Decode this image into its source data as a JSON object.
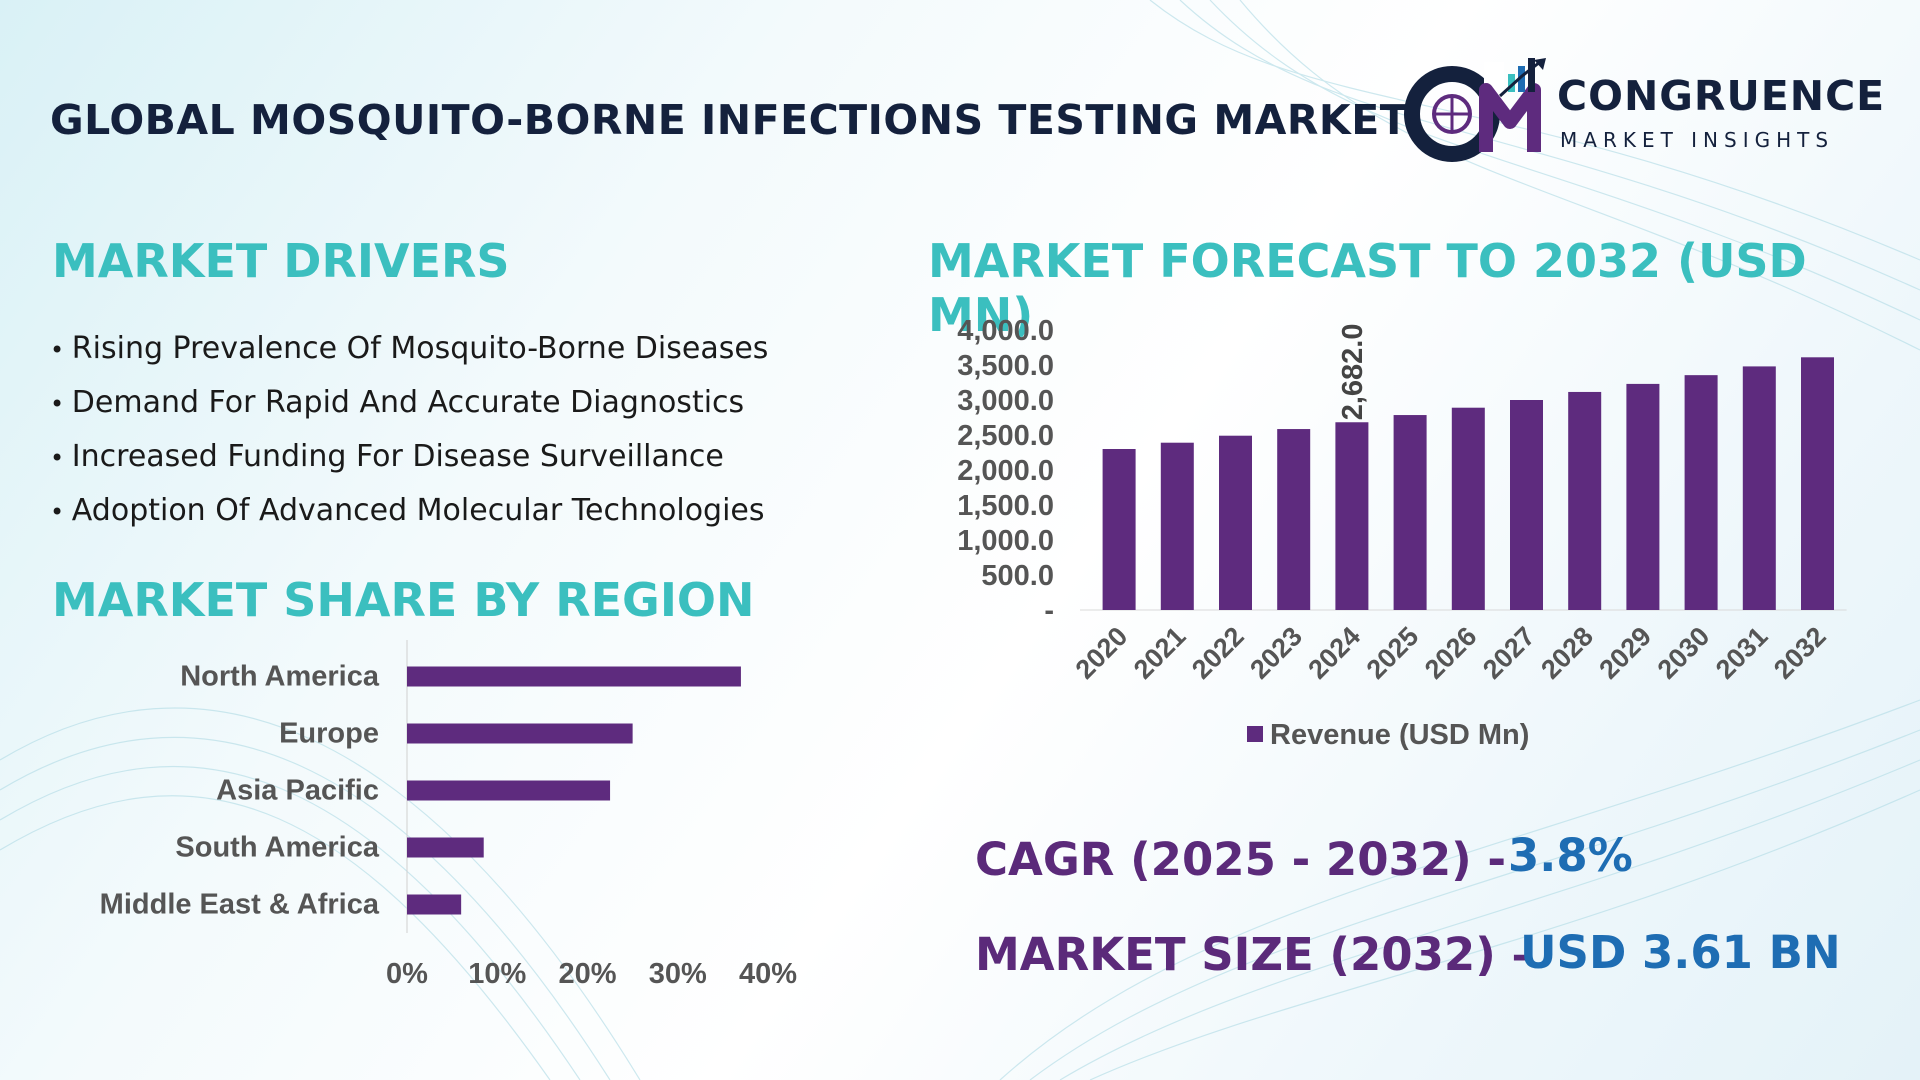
{
  "header": {
    "title": "GLOBAL MOSQUITO-BORNE INFECTIONS TESTING MARKET",
    "logo_mark": "CM",
    "logo_word1": "CONGRUENCE",
    "logo_word2": "MARKET INSIGHTS"
  },
  "drivers": {
    "title": "MARKET DRIVERS",
    "items": [
      "Rising Prevalence Of Mosquito-Borne Diseases",
      "Demand For Rapid And Accurate Diagnostics",
      "Increased Funding For Disease Surveillance",
      "Adoption Of Advanced Molecular Technologies"
    ]
  },
  "region": {
    "title": "MARKET SHARE BY REGION"
  },
  "forecast": {
    "title": "MARKET FORECAST TO 2032 (USD MN)"
  },
  "kpis": {
    "cagr_label": "CAGR (2025 - 2032) -",
    "cagr_value": "3.8%",
    "size_label": "MARKET SIZE (2032) –",
    "size_value": "USD 3.61 BN"
  },
  "colors": {
    "accent": "#5e2b7e",
    "teal": "#3bbfbf",
    "navy": "#14213d",
    "blue": "#1e6db3"
  },
  "chart_data": [
    {
      "type": "bar",
      "orientation": "horizontal",
      "categories": [
        "North America",
        "Europe",
        "Asia Pacific",
        "South America",
        "Middle East & Africa"
      ],
      "values": [
        37,
        25,
        22.5,
        8.5,
        6
      ],
      "xlim": [
        0,
        40
      ],
      "xticks": [
        "0%",
        "10%",
        "20%",
        "30%",
        "40%"
      ]
    },
    {
      "type": "bar",
      "categories": [
        "2020",
        "2021",
        "2022",
        "2023",
        "2024",
        "2025",
        "2026",
        "2027",
        "2028",
        "2029",
        "2030",
        "2031",
        "2032"
      ],
      "series": [
        {
          "name": "Revenue (USD Mn)",
          "values": [
            2300,
            2390,
            2490,
            2585,
            2682,
            2785,
            2890,
            3000,
            3115,
            3230,
            3355,
            3480,
            3610
          ]
        }
      ],
      "data_labels": [
        {
          "index": 4,
          "text": "2,682.0"
        }
      ],
      "ylim": [
        0,
        4000
      ],
      "yticks": [
        "-",
        "500.0",
        "1,000.0",
        "1,500.0",
        "2,000.0",
        "2,500.0",
        "3,000.0",
        "3,500.0",
        "4,000.0"
      ],
      "legend": "bottom"
    }
  ]
}
